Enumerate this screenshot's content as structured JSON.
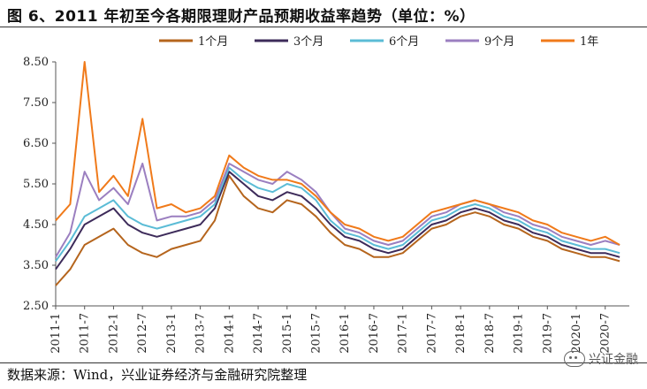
{
  "title": "图 6、2011 年初至今各期限理财产品预期收益率趋势（单位：%）",
  "source": "数据来源：Wind，兴业证券经济与金融研究院整理",
  "watermark": "兴证金融",
  "chart_data": {
    "type": "line",
    "xlabel": "",
    "ylabel": "",
    "ylim": [
      2.5,
      8.5
    ],
    "yticks": [
      "2.50",
      "3.50",
      "4.50",
      "5.50",
      "6.50",
      "7.50",
      "8.50"
    ],
    "ytick_values": [
      2.5,
      3.5,
      4.5,
      5.5,
      6.5,
      7.5,
      8.5
    ],
    "x_start": "2011-01",
    "x_end": "2020-12",
    "xticks": [
      "2011-1",
      "2011-7",
      "2012-1",
      "2012-7",
      "2013-1",
      "2013-7",
      "2014-1",
      "2014-7",
      "2015-1",
      "2015-7",
      "2016-1",
      "2016-7",
      "2017-1",
      "2017-7",
      "2018-1",
      "2018-7",
      "2019-1",
      "2019-7",
      "2020-1",
      "2020-7"
    ],
    "legend_position": "top",
    "grid": false,
    "series": [
      {
        "name": "1个月",
        "color": "#b5651d",
        "x": [
          "2011-01",
          "2011-04",
          "2011-07",
          "2011-10",
          "2012-01",
          "2012-04",
          "2012-07",
          "2012-10",
          "2013-01",
          "2013-04",
          "2013-07",
          "2013-10",
          "2014-01",
          "2014-04",
          "2014-07",
          "2014-10",
          "2015-01",
          "2015-04",
          "2015-07",
          "2015-10",
          "2016-01",
          "2016-04",
          "2016-07",
          "2016-10",
          "2017-01",
          "2017-04",
          "2017-07",
          "2017-10",
          "2018-01",
          "2018-04",
          "2018-07",
          "2018-10",
          "2019-01",
          "2019-04",
          "2019-07",
          "2019-10",
          "2020-01",
          "2020-04",
          "2020-07",
          "2020-10"
        ],
        "values": [
          3.0,
          3.4,
          4.0,
          4.2,
          4.4,
          4.0,
          3.8,
          3.7,
          3.9,
          4.0,
          4.1,
          4.6,
          5.7,
          5.2,
          4.9,
          4.8,
          5.1,
          5.0,
          4.7,
          4.3,
          4.0,
          3.9,
          3.7,
          3.7,
          3.8,
          4.1,
          4.4,
          4.5,
          4.7,
          4.8,
          4.7,
          4.5,
          4.4,
          4.2,
          4.1,
          3.9,
          3.8,
          3.7,
          3.7,
          3.6
        ]
      },
      {
        "name": "3个月",
        "color": "#3d2b5a",
        "x": [
          "2011-01",
          "2011-04",
          "2011-07",
          "2011-10",
          "2012-01",
          "2012-04",
          "2012-07",
          "2012-10",
          "2013-01",
          "2013-04",
          "2013-07",
          "2013-10",
          "2014-01",
          "2014-04",
          "2014-07",
          "2014-10",
          "2015-01",
          "2015-04",
          "2015-07",
          "2015-10",
          "2016-01",
          "2016-04",
          "2016-07",
          "2016-10",
          "2017-01",
          "2017-04",
          "2017-07",
          "2017-10",
          "2018-01",
          "2018-04",
          "2018-07",
          "2018-10",
          "2019-01",
          "2019-04",
          "2019-07",
          "2019-10",
          "2020-01",
          "2020-04",
          "2020-07",
          "2020-10"
        ],
        "values": [
          3.4,
          3.9,
          4.5,
          4.7,
          4.9,
          4.5,
          4.3,
          4.2,
          4.3,
          4.4,
          4.5,
          4.9,
          5.8,
          5.5,
          5.2,
          5.1,
          5.3,
          5.2,
          4.9,
          4.5,
          4.2,
          4.1,
          3.9,
          3.8,
          3.9,
          4.2,
          4.5,
          4.6,
          4.8,
          4.9,
          4.8,
          4.6,
          4.5,
          4.3,
          4.2,
          4.0,
          3.9,
          3.8,
          3.8,
          3.7
        ]
      },
      {
        "name": "6个月",
        "color": "#5bbcd6",
        "x": [
          "2011-01",
          "2011-04",
          "2011-07",
          "2011-10",
          "2012-01",
          "2012-04",
          "2012-07",
          "2012-10",
          "2013-01",
          "2013-04",
          "2013-07",
          "2013-10",
          "2014-01",
          "2014-04",
          "2014-07",
          "2014-10",
          "2015-01",
          "2015-04",
          "2015-07",
          "2015-10",
          "2016-01",
          "2016-04",
          "2016-07",
          "2016-10",
          "2017-01",
          "2017-04",
          "2017-07",
          "2017-10",
          "2018-01",
          "2018-04",
          "2018-07",
          "2018-10",
          "2019-01",
          "2019-04",
          "2019-07",
          "2019-10",
          "2020-01",
          "2020-04",
          "2020-07",
          "2020-10"
        ],
        "values": [
          3.6,
          4.1,
          4.7,
          4.9,
          5.1,
          4.7,
          4.5,
          4.4,
          4.5,
          4.6,
          4.7,
          5.0,
          5.9,
          5.6,
          5.4,
          5.3,
          5.5,
          5.4,
          5.1,
          4.6,
          4.3,
          4.2,
          4.0,
          3.9,
          4.0,
          4.3,
          4.6,
          4.7,
          4.9,
          5.0,
          4.9,
          4.7,
          4.6,
          4.4,
          4.3,
          4.1,
          4.0,
          3.9,
          3.9,
          3.8
        ]
      },
      {
        "name": "9个月",
        "color": "#9b7fc0",
        "x": [
          "2011-01",
          "2011-04",
          "2011-07",
          "2011-10",
          "2012-01",
          "2012-04",
          "2012-07",
          "2012-10",
          "2013-01",
          "2013-04",
          "2013-07",
          "2013-10",
          "2014-01",
          "2014-04",
          "2014-07",
          "2014-10",
          "2015-01",
          "2015-04",
          "2015-07",
          "2015-10",
          "2016-01",
          "2016-04",
          "2016-07",
          "2016-10",
          "2017-01",
          "2017-04",
          "2017-07",
          "2017-10",
          "2018-01",
          "2018-04",
          "2018-07",
          "2018-10",
          "2019-01",
          "2019-04",
          "2019-07",
          "2019-10",
          "2020-01",
          "2020-04",
          "2020-07",
          "2020-10"
        ],
        "values": [
          3.7,
          4.3,
          5.8,
          5.1,
          5.4,
          5.0,
          6.0,
          4.6,
          4.7,
          4.7,
          4.8,
          5.1,
          6.0,
          5.8,
          5.6,
          5.5,
          5.8,
          5.6,
          5.3,
          4.8,
          4.4,
          4.3,
          4.1,
          4.0,
          4.1,
          4.4,
          4.7,
          4.8,
          5.0,
          5.1,
          5.0,
          4.8,
          4.7,
          4.5,
          4.4,
          4.2,
          4.1,
          4.0,
          4.1,
          4.0
        ]
      },
      {
        "name": "1年",
        "color": "#f07a1a",
        "x": [
          "2011-01",
          "2011-04",
          "2011-07",
          "2011-10",
          "2012-01",
          "2012-04",
          "2012-07",
          "2012-10",
          "2013-01",
          "2013-04",
          "2013-07",
          "2013-10",
          "2014-01",
          "2014-04",
          "2014-07",
          "2014-10",
          "2015-01",
          "2015-04",
          "2015-07",
          "2015-10",
          "2016-01",
          "2016-04",
          "2016-07",
          "2016-10",
          "2017-01",
          "2017-04",
          "2017-07",
          "2017-10",
          "2018-01",
          "2018-04",
          "2018-07",
          "2018-10",
          "2019-01",
          "2019-04",
          "2019-07",
          "2019-10",
          "2020-01",
          "2020-04",
          "2020-07",
          "2020-10"
        ],
        "values": [
          4.6,
          5.0,
          8.5,
          5.3,
          5.7,
          5.2,
          7.1,
          4.9,
          5.0,
          4.8,
          4.9,
          5.2,
          6.2,
          5.9,
          5.7,
          5.6,
          5.6,
          5.5,
          5.2,
          4.8,
          4.5,
          4.4,
          4.2,
          4.1,
          4.2,
          4.5,
          4.8,
          4.9,
          5.0,
          5.1,
          5.0,
          4.9,
          4.8,
          4.6,
          4.5,
          4.3,
          4.2,
          4.1,
          4.2,
          4.0
        ]
      }
    ]
  }
}
